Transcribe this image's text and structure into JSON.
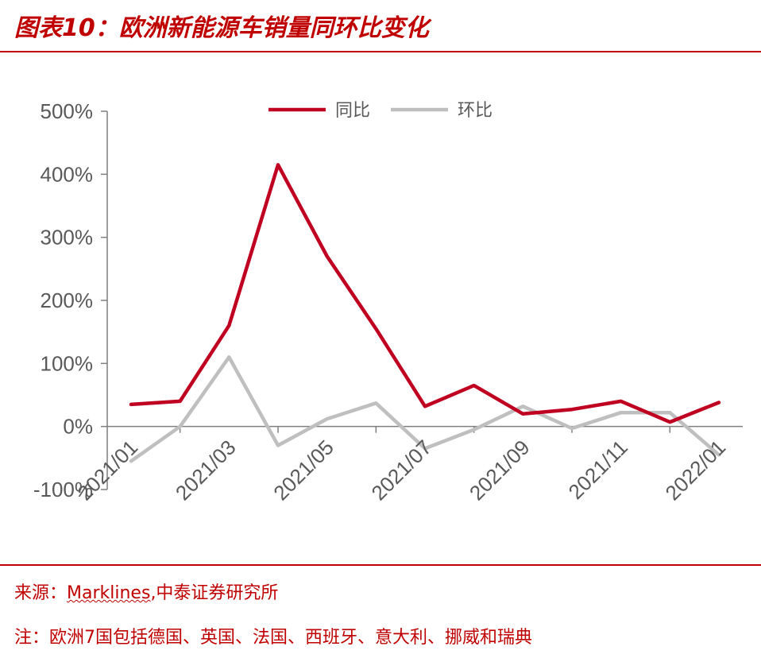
{
  "header": {
    "title": "图表10：欧洲新能源车销量同环比变化"
  },
  "footer": {
    "source_prefix": "来源：",
    "source_link": "Marklines",
    "source_suffix": ",中泰证券研究所",
    "note": "注：欧洲7国包括德国、英国、法国、西班牙、意大利、挪威和瑞典"
  },
  "colors": {
    "yoy": "#c00020",
    "mom": "#bfbfbf",
    "accent": "#c00000"
  },
  "chart_data": {
    "type": "line",
    "title": "",
    "xlabel": "",
    "ylabel": "",
    "x": [
      "2021/01",
      "2021/02",
      "2021/03",
      "2021/04",
      "2021/05",
      "2021/06",
      "2021/07",
      "2021/08",
      "2021/09",
      "2021/10",
      "2021/11",
      "2021/12",
      "2022/01"
    ],
    "x_tick_labels": [
      "2021/01",
      "2021/03",
      "2021/05",
      "2021/07",
      "2021/09",
      "2021/11",
      "2022/01"
    ],
    "y_tick_labels": [
      "500%",
      "400%",
      "300%",
      "200%",
      "100%",
      "0%",
      "-100%"
    ],
    "ylim": [
      -100,
      500
    ],
    "legend_position": "top-center",
    "grid": false,
    "series": [
      {
        "name": "同比",
        "color": "#c00020",
        "values": [
          35,
          40,
          160,
          415,
          270,
          155,
          32,
          65,
          20,
          27,
          40,
          7,
          38
        ]
      },
      {
        "name": "环比",
        "color": "#bfbfbf",
        "values": [
          -55,
          0,
          110,
          -30,
          12,
          37,
          -35,
          -5,
          32,
          -3,
          22,
          22,
          -45
        ]
      }
    ]
  }
}
